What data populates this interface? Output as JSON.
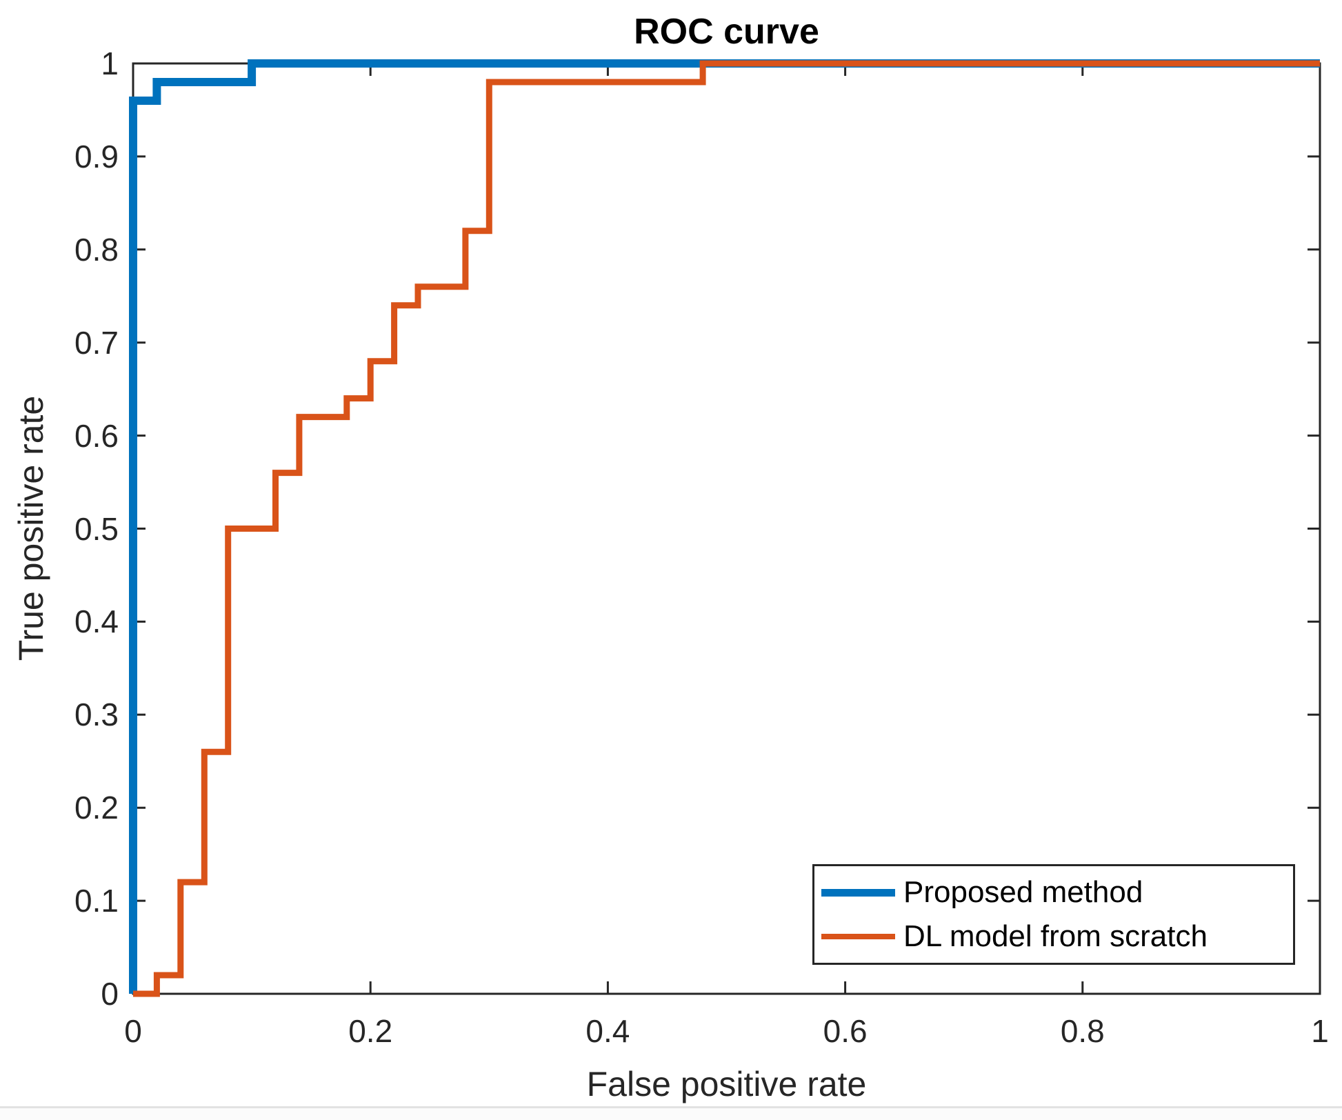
{
  "chart": {
    "title": "ROC curve",
    "xlabel": "False positive rate",
    "ylabel": "True positive rate"
  },
  "legend": {
    "position": "bottom-right",
    "items": [
      {
        "label": "Proposed method",
        "color": "#0072BD",
        "sample_height": 11
      },
      {
        "label": "DL model from scratch",
        "color": "#D95319",
        "sample_height": 8
      }
    ]
  },
  "chart_data": {
    "type": "line",
    "subtype": "roc-step-curves",
    "title": "ROC curve",
    "xlabel": "False positive rate",
    "ylabel": "True positive rate",
    "xlim": [
      0,
      1
    ],
    "ylim": [
      0,
      1
    ],
    "grid": false,
    "box": true,
    "legend_position": "bottom-right",
    "x_ticks": [
      0,
      0.2,
      0.4,
      0.6,
      0.8,
      1
    ],
    "x_tick_labels": [
      "0",
      "0.2",
      "0.4",
      "0.6",
      "0.8",
      "1"
    ],
    "y_ticks": [
      0,
      0.1,
      0.2,
      0.3,
      0.4,
      0.5,
      0.6,
      0.7,
      0.8,
      0.9,
      1
    ],
    "y_tick_labels": [
      "0",
      "0.1",
      "0.2",
      "0.3",
      "0.4",
      "0.5",
      "0.6",
      "0.7",
      "0.8",
      "0.9",
      "1"
    ],
    "axis_color": "#262626",
    "series": [
      {
        "name": "Proposed method",
        "color": "#0072BD",
        "line_width": 12,
        "points": [
          [
            0,
            0
          ],
          [
            0,
            0.96
          ],
          [
            0.02,
            0.96
          ],
          [
            0.02,
            0.98
          ],
          [
            0.1,
            0.98
          ],
          [
            0.1,
            1
          ],
          [
            1,
            1
          ]
        ]
      },
      {
        "name": "DL model from scratch",
        "color": "#D95319",
        "line_width": 9,
        "points": [
          [
            0,
            0
          ],
          [
            0.02,
            0
          ],
          [
            0.02,
            0.02
          ],
          [
            0.04,
            0.02
          ],
          [
            0.04,
            0.12
          ],
          [
            0.06,
            0.12
          ],
          [
            0.06,
            0.26
          ],
          [
            0.08,
            0.26
          ],
          [
            0.08,
            0.5
          ],
          [
            0.12,
            0.5
          ],
          [
            0.12,
            0.56
          ],
          [
            0.14,
            0.56
          ],
          [
            0.14,
            0.62
          ],
          [
            0.18,
            0.62
          ],
          [
            0.18,
            0.64
          ],
          [
            0.2,
            0.64
          ],
          [
            0.2,
            0.68
          ],
          [
            0.22,
            0.68
          ],
          [
            0.22,
            0.74
          ],
          [
            0.24,
            0.74
          ],
          [
            0.24,
            0.76
          ],
          [
            0.28,
            0.76
          ],
          [
            0.28,
            0.82
          ],
          [
            0.3,
            0.82
          ],
          [
            0.3,
            0.98
          ],
          [
            0.48,
            0.98
          ],
          [
            0.48,
            1
          ],
          [
            1,
            1
          ]
        ]
      }
    ]
  }
}
